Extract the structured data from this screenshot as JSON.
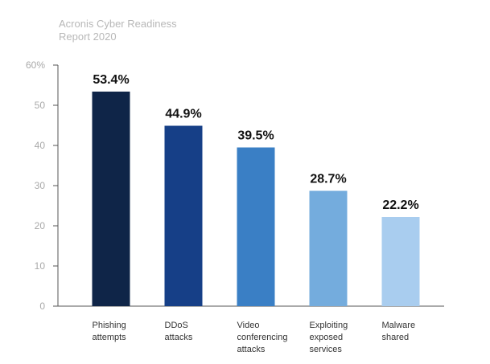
{
  "source": {
    "line1": "Acronis Cyber Readiness",
    "line2": "Report 2020"
  },
  "chart_data": {
    "type": "bar",
    "title": "",
    "xlabel": "",
    "ylabel": "",
    "ylim": [
      0,
      60
    ],
    "yticks": [
      0,
      10,
      20,
      30,
      40,
      50,
      60
    ],
    "ytick_labels": [
      "0",
      "10",
      "20",
      "30",
      "40",
      "50",
      "60%"
    ],
    "grid": false,
    "legend": "none",
    "categories": [
      [
        "Phishing",
        "attempts"
      ],
      [
        "DDoS",
        "attacks"
      ],
      [
        "Video",
        "conferencing",
        "attacks"
      ],
      [
        "Exploiting",
        "exposed",
        "services"
      ],
      [
        "Malware",
        "shared"
      ]
    ],
    "values": [
      53.4,
      44.9,
      39.5,
      28.7,
      22.2
    ],
    "data_labels": [
      "53.4%",
      "44.9%",
      "39.5%",
      "28.7%",
      "22.2%"
    ],
    "colors": [
      "#0f2548",
      "#163f87",
      "#3a7fc5",
      "#74acdd",
      "#a9cdef"
    ]
  }
}
